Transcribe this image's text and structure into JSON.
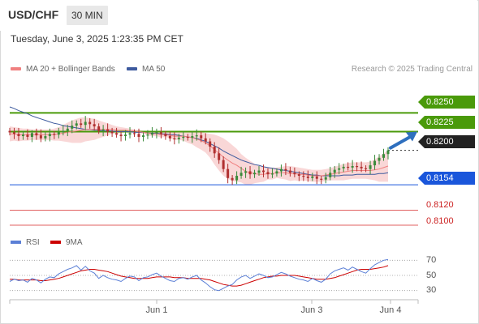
{
  "header": {
    "pair": "USD/CHF",
    "timeframe": "30 MIN",
    "datetime": "Tuesday, June 3, 2025 1:23:35 PM CET"
  },
  "legend": {
    "ma20": "MA 20 + Bollinger Bands",
    "ma50": "MA 50",
    "copyright": "Research © 2025 Trading Central"
  },
  "colors": {
    "resistance": "#4a9a0a",
    "support": "#1a56db",
    "red_level": "#e06060",
    "current": "#222222",
    "arrow": "#2e6fbe",
    "candle_up": "#3a8a3a",
    "candle_down": "#b03030",
    "bollinger_fill": "#f7c9c9",
    "ma20": "#f08080",
    "ma50": "#3d5a9e",
    "rsi": "#5b7fd6",
    "rsi_ma": "#cc0000"
  },
  "chart_data": [
    {
      "type": "candlestick",
      "title": "USD/CHF",
      "timeframe": "30 MIN",
      "ylim": [
        0.8087,
        0.8284
      ],
      "levels": [
        {
          "label": "0.8250",
          "value": 0.825,
          "kind": "resistance"
        },
        {
          "label": "0.8225",
          "value": 0.8225,
          "kind": "resistance"
        },
        {
          "label": "0.8200",
          "value": 0.82,
          "kind": "current"
        },
        {
          "label": "0.8154",
          "value": 0.8154,
          "kind": "support"
        },
        {
          "label": "0.8120",
          "value": 0.812,
          "kind": "target"
        },
        {
          "label": "0.8100",
          "value": 0.81,
          "kind": "target"
        }
      ],
      "x_labels": [
        "Jun 1",
        "Jun 3",
        "Jun 4"
      ],
      "close": [
        0.8224,
        0.8222,
        0.8219,
        0.8221,
        0.8218,
        0.8223,
        0.822,
        0.8216,
        0.8219,
        0.8222,
        0.8221,
        0.8224,
        0.8226,
        0.8229,
        0.8233,
        0.8236,
        0.8234,
        0.8238,
        0.8235,
        0.8232,
        0.8226,
        0.8228,
        0.8225,
        0.8223,
        0.8221,
        0.8219,
        0.8221,
        0.8223,
        0.8222,
        0.8218,
        0.822,
        0.8221,
        0.8223,
        0.8224,
        0.8222,
        0.8219,
        0.8216,
        0.8215,
        0.8217,
        0.8218,
        0.8217,
        0.8219,
        0.822,
        0.8216,
        0.8212,
        0.8205,
        0.8196,
        0.8187,
        0.8175,
        0.8163,
        0.816,
        0.8166,
        0.817,
        0.8172,
        0.8168,
        0.817,
        0.8173,
        0.8171,
        0.8168,
        0.8169,
        0.8172,
        0.8175,
        0.8173,
        0.817,
        0.8168,
        0.8166,
        0.8165,
        0.8163,
        0.8165,
        0.8162,
        0.8161,
        0.8164,
        0.817,
        0.8174,
        0.8176,
        0.8178,
        0.8177,
        0.8179,
        0.8178,
        0.8176,
        0.8175,
        0.818,
        0.8186,
        0.819,
        0.8195,
        0.82
      ],
      "ma20": [
        0.8222,
        0.8222,
        0.8221,
        0.8221,
        0.8221,
        0.8221,
        0.8221,
        0.8221,
        0.8221,
        0.8221,
        0.8221,
        0.8222,
        0.8223,
        0.8224,
        0.8225,
        0.8226,
        0.8227,
        0.8228,
        0.8228,
        0.8228,
        0.8228,
        0.8228,
        0.8228,
        0.8228,
        0.8227,
        0.8227,
        0.8227,
        0.8226,
        0.8226,
        0.8225,
        0.8224,
        0.8223,
        0.8222,
        0.8222,
        0.8221,
        0.8221,
        0.822,
        0.8219,
        0.8219,
        0.8219,
        0.8218,
        0.8217,
        0.8215,
        0.8213,
        0.821,
        0.8206,
        0.8201,
        0.8196,
        0.8191,
        0.8187,
        0.8183,
        0.818,
        0.8176,
        0.8172,
        0.817,
        0.8169,
        0.8168,
        0.8168,
        0.8169,
        0.8169,
        0.817,
        0.817,
        0.817,
        0.8169,
        0.8169,
        0.8168,
        0.8168,
        0.8167,
        0.8166,
        0.8166,
        0.8166,
        0.8167,
        0.8168,
        0.8169,
        0.817,
        0.8171,
        0.8172,
        0.8173,
        0.8173,
        0.8173,
        0.8173,
        0.8173,
        0.8174,
        0.8175,
        0.8177,
        0.8179
      ],
      "boll_upper": [
        0.8232,
        0.8231,
        0.823,
        0.8229,
        0.8229,
        0.8228,
        0.8228,
        0.8228,
        0.8228,
        0.8228,
        0.8229,
        0.8231,
        0.8234,
        0.8237,
        0.824,
        0.8242,
        0.8244,
        0.8244,
        0.8243,
        0.8242,
        0.824,
        0.8238,
        0.8236,
        0.8234,
        0.8232,
        0.8231,
        0.823,
        0.8229,
        0.8228,
        0.8227,
        0.8226,
        0.8226,
        0.8225,
        0.8225,
        0.8225,
        0.8224,
        0.8224,
        0.8224,
        0.8224,
        0.8225,
        0.8226,
        0.8226,
        0.8226,
        0.8225,
        0.8223,
        0.8222,
        0.8221,
        0.8219,
        0.8216,
        0.8212,
        0.8207,
        0.8202,
        0.8195,
        0.819,
        0.8186,
        0.8182,
        0.8179,
        0.8178,
        0.8177,
        0.8177,
        0.8177,
        0.8178,
        0.8179,
        0.8179,
        0.8178,
        0.8177,
        0.8176,
        0.8175,
        0.8174,
        0.8174,
        0.8174,
        0.8175,
        0.8176,
        0.8178,
        0.818,
        0.8182,
        0.8183,
        0.8184,
        0.8184,
        0.8184,
        0.8184,
        0.8185,
        0.8188,
        0.8192,
        0.8196,
        0.82
      ],
      "boll_lower": [
        0.8212,
        0.8213,
        0.8212,
        0.8213,
        0.8213,
        0.8214,
        0.8214,
        0.8214,
        0.8214,
        0.8214,
        0.8213,
        0.8213,
        0.8212,
        0.8211,
        0.821,
        0.821,
        0.821,
        0.8212,
        0.8213,
        0.8214,
        0.8216,
        0.8218,
        0.822,
        0.8222,
        0.8222,
        0.8223,
        0.8224,
        0.8223,
        0.8224,
        0.8223,
        0.8222,
        0.822,
        0.8219,
        0.8219,
        0.8217,
        0.8218,
        0.8216,
        0.8214,
        0.8214,
        0.8213,
        0.821,
        0.8208,
        0.8204,
        0.8201,
        0.8197,
        0.819,
        0.8181,
        0.8173,
        0.8166,
        0.8162,
        0.8159,
        0.8158,
        0.8157,
        0.8154,
        0.8154,
        0.8156,
        0.8157,
        0.8158,
        0.8161,
        0.8161,
        0.8163,
        0.8162,
        0.8161,
        0.8159,
        0.816,
        0.8159,
        0.816,
        0.8159,
        0.8158,
        0.8158,
        0.8158,
        0.8159,
        0.816,
        0.816,
        0.816,
        0.816,
        0.8161,
        0.8162,
        0.8162,
        0.8162,
        0.8162,
        0.8161,
        0.816,
        0.8158,
        0.8158,
        0.8158
      ],
      "ma50": [
        0.8258,
        0.8256,
        0.8253,
        0.8251,
        0.8249,
        0.8246,
        0.8244,
        0.8242,
        0.824,
        0.8238,
        0.8236,
        0.8235,
        0.8233,
        0.8232,
        0.8231,
        0.823,
        0.8229,
        0.8228,
        0.8228,
        0.8227,
        0.8227,
        0.8226,
        0.8226,
        0.8226,
        0.8225,
        0.8225,
        0.8225,
        0.8225,
        0.8224,
        0.8224,
        0.8224,
        0.8223,
        0.8223,
        0.8223,
        0.8222,
        0.8222,
        0.8221,
        0.8221,
        0.822,
        0.8219,
        0.8218,
        0.8217,
        0.8216,
        0.8214,
        0.8212,
        0.8209,
        0.8206,
        0.8203,
        0.8199,
        0.8196,
        0.8193,
        0.819,
        0.8187,
        0.8185,
        0.8183,
        0.8181,
        0.818,
        0.8178,
        0.8177,
        0.8176,
        0.8175,
        0.8174,
        0.8173,
        0.8172,
        0.8171,
        0.817,
        0.8169,
        0.8168,
        0.8167,
        0.8167,
        0.8166,
        0.8166,
        0.8166,
        0.8166,
        0.8166,
        0.8167,
        0.8167,
        0.8167,
        0.8168,
        0.8168,
        0.8168,
        0.8168,
        0.8168,
        0.8169,
        0.8169,
        0.817
      ]
    },
    {
      "type": "line",
      "title": "RSI",
      "series": [
        {
          "name": "RSI",
          "values": [
            42,
            45,
            43,
            44,
            41,
            46,
            44,
            40,
            45,
            48,
            47,
            52,
            55,
            58,
            60,
            63,
            57,
            62,
            56,
            53,
            46,
            50,
            47,
            45,
            44,
            42,
            46,
            49,
            48,
            43,
            47,
            48,
            51,
            53,
            49,
            46,
            43,
            42,
            46,
            47,
            45,
            48,
            50,
            44,
            40,
            35,
            31,
            30,
            33,
            36,
            38,
            44,
            48,
            50,
            46,
            49,
            52,
            50,
            47,
            48,
            51,
            54,
            52,
            49,
            47,
            45,
            44,
            42,
            46,
            43,
            41,
            45,
            52,
            56,
            58,
            60,
            57,
            61,
            58,
            55,
            53,
            59,
            64,
            67,
            70,
            71
          ]
        },
        {
          "name": "9MA",
          "values": [
            45,
            45,
            44,
            44,
            44,
            44,
            44,
            43,
            43,
            44,
            45,
            46,
            48,
            50,
            52,
            54,
            56,
            57,
            58,
            58,
            57,
            56,
            55,
            53,
            51,
            49,
            48,
            47,
            46,
            46,
            46,
            46,
            47,
            48,
            48,
            48,
            48,
            47,
            47,
            47,
            46,
            46,
            46,
            46,
            45,
            44,
            42,
            40,
            38,
            37,
            36,
            36,
            37,
            39,
            41,
            43,
            45,
            47,
            48,
            49,
            49,
            50,
            50,
            50,
            50,
            49,
            48,
            47,
            46,
            45,
            45,
            45,
            46,
            47,
            49,
            51,
            53,
            55,
            57,
            58,
            58,
            58,
            59,
            60,
            61,
            63
          ]
        }
      ],
      "ylim": [
        20,
        80
      ],
      "ticks": [
        "70",
        "50",
        "30"
      ],
      "legend": {
        "rsi": "RSI",
        "ma": "9MA"
      }
    }
  ]
}
